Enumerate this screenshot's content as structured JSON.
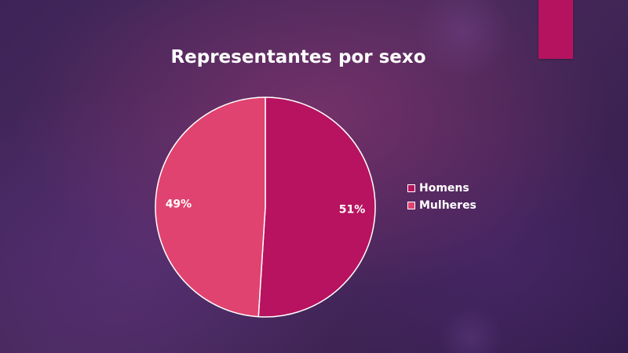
{
  "slide": {
    "accent_color": "#b5135f",
    "background_color": "#3a2150"
  },
  "chart_data": {
    "type": "pie",
    "title": "Representantes por sexo",
    "categories": [
      "Homens",
      "Mulheres"
    ],
    "values": [
      51,
      49
    ],
    "labels": [
      "51%",
      "49%"
    ],
    "colors": [
      "#b71360",
      "#e04370"
    ],
    "start_angle_deg": 0,
    "direction": "clockwise",
    "legend": {
      "position": "right"
    }
  }
}
